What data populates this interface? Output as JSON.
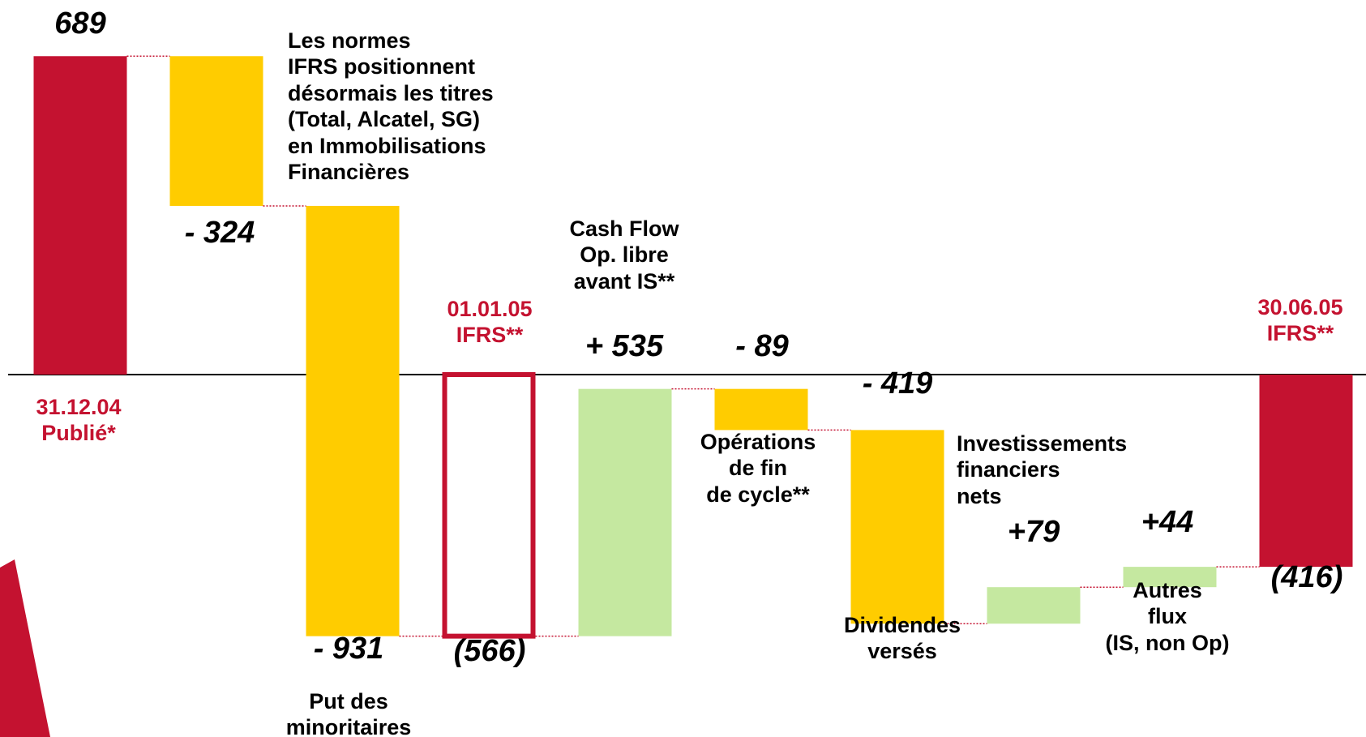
{
  "chart_data": {
    "type": "waterfall",
    "categories": [
      "31.12.04\nPublié*",
      "Les normes\nIFRS positionnent\ndésormais les titres\n(Total, Alcatel, SG)\nen Immobilisations\nFinancières",
      "Put des\nminoritaires",
      "01.01.05\nIFRS**",
      "Cash Flow\nOp. libre\navant IS**",
      "Opérations\nde fin\nde cycle**",
      "Dividendes\nversés",
      "Investissements\nfinanciers\nnets",
      "Autres\nflux\n(IS, non Op)",
      "30.06.05\nIFRS**"
    ],
    "values": [
      689,
      -324,
      -931,
      -566,
      535,
      -89,
      -419,
      79,
      44,
      -416
    ],
    "value_labels": [
      "689",
      "- 324",
      "- 931",
      "(566)",
      "+ 535",
      "- 89",
      "- 419",
      "+79",
      "+44",
      "(416)"
    ],
    "bar_kinds": [
      "total",
      "change",
      "change",
      "total-outline",
      "change",
      "change",
      "change",
      "change",
      "change",
      "total"
    ],
    "colors": {
      "total": "#c41230",
      "increase": "#c5e8a0",
      "decrease": "#ffcc00"
    }
  }
}
